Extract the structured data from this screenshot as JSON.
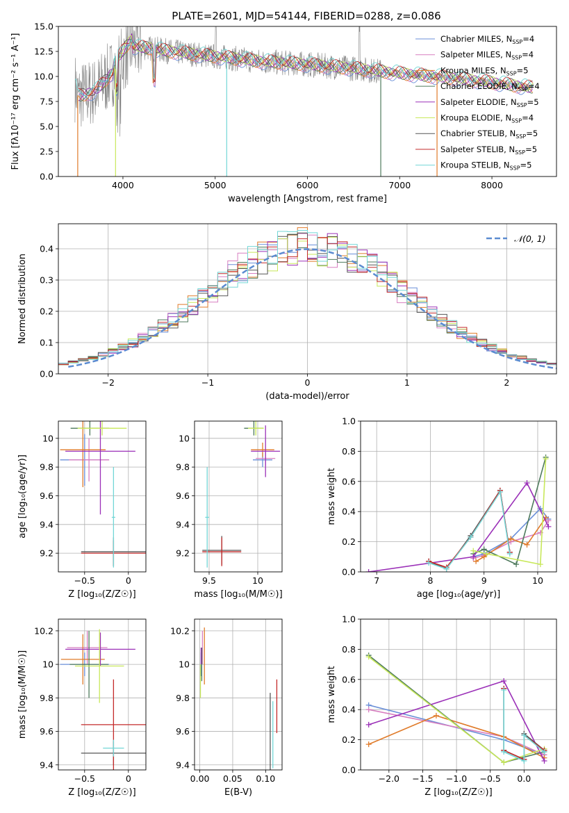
{
  "figure": {
    "title": "PLATE=2601, MJD=54144, FIBERID=0288, z=0.086",
    "colors": {
      "chabrier_miles": "#6a8fd8",
      "salpeter_miles": "#d77fc0",
      "kroupa_miles": "#e07b2a",
      "chabrier_elodie": "#4e7a5c",
      "salpeter_elodie": "#9b30b8",
      "kroupa_elodie": "#c8e85a",
      "chabrier_stelib": "#555555",
      "salpeter_stelib": "#c42a2a",
      "kroupa_stelib": "#72d6d6",
      "gaussian": "#5b8bd0"
    }
  },
  "legend": [
    {
      "key": "chabrier_miles",
      "label": "Chabrier MILES, N",
      "sub": "SSP",
      "suffix": "=4"
    },
    {
      "key": "salpeter_miles",
      "label": "Salpeter MILES, N",
      "sub": "SSP",
      "suffix": "=4"
    },
    {
      "key": "kroupa_miles",
      "label": "Kroupa MILES, N",
      "sub": "SSP",
      "suffix": "=5"
    },
    {
      "key": "chabrier_elodie",
      "label": "Chabrier ELODIE, N",
      "sub": "SSP",
      "suffix": "=4"
    },
    {
      "key": "salpeter_elodie",
      "label": "Salpeter ELODIE, N",
      "sub": "SSP",
      "suffix": "=5"
    },
    {
      "key": "kroupa_elodie",
      "label": "Kroupa ELODIE, N",
      "sub": "SSP",
      "suffix": "=4"
    },
    {
      "key": "chabrier_stelib",
      "label": "Chabrier STELIB, N",
      "sub": "SSP",
      "suffix": "=5"
    },
    {
      "key": "salpeter_stelib",
      "label": "Salpeter STELIB, N",
      "sub": "SSP",
      "suffix": "=5"
    },
    {
      "key": "kroupa_stelib",
      "label": "Kroupa STELIB, N",
      "sub": "SSP",
      "suffix": "=5"
    }
  ],
  "chart_data": [
    {
      "id": "spectrum",
      "type": "line",
      "xlabel": "wavelength [Angstrom, rest frame]",
      "ylabel": "Flux [fλ10⁻¹⁷ erg cm⁻² s⁻¹ A⁻¹]",
      "xlim": [
        3300,
        8700
      ],
      "ylim": [
        0,
        15
      ],
      "xticks": [
        4000,
        5000,
        6000,
        7000,
        8000
      ],
      "yticks": [
        0.0,
        2.5,
        5.0,
        7.5,
        10.0,
        12.5,
        15.0
      ],
      "grid": false,
      "legend_position": "top-right",
      "data_envelope": {
        "wavelength": [
          3500,
          3700,
          3900,
          4100,
          4300,
          4500,
          5000,
          5500,
          6000,
          6500,
          7000,
          7500,
          8000,
          8400
        ],
        "flux": [
          8.0,
          8.5,
          10.5,
          13.0,
          12.8,
          12.5,
          12.0,
          11.5,
          11.2,
          10.8,
          10.3,
          9.9,
          9.4,
          8.9
        ]
      }
    },
    {
      "id": "residuals",
      "type": "histogram",
      "xlabel": "(data-model)/error",
      "ylabel": "Normed distribution",
      "xlim": [
        -2.5,
        2.5
      ],
      "ylim": [
        0,
        0.48
      ],
      "xticks": [
        -2,
        -1,
        0,
        1,
        2
      ],
      "yticks": [
        0.0,
        0.1,
        0.2,
        0.3,
        0.4
      ],
      "grid": true,
      "legend_position": "top-right",
      "overlay_label": "𝒩(0, 1)",
      "bin_width": 0.1
    },
    {
      "id": "age_vs_z",
      "type": "scatter",
      "xlabel": "Z [log₁₀(Z/Z☉)]",
      "ylabel": "age  [log₁₀(age/yr)]",
      "xlim": [
        -0.8,
        0.2
      ],
      "ylim": [
        9.07,
        10.12
      ],
      "xticks": [
        -0.5,
        0.0
      ],
      "yticks": [
        9.2,
        9.4,
        9.6,
        9.8,
        10.0
      ],
      "grid": true,
      "points": [
        {
          "key": "chabrier_miles",
          "x": -0.5,
          "y": 9.85,
          "xerr": 0.28,
          "yerr": 0.18
        },
        {
          "key": "salpeter_miles",
          "x": -0.45,
          "y": 9.85,
          "xerr": 0.23,
          "yerr": 0.15
        },
        {
          "key": "kroupa_miles",
          "x": -0.52,
          "y": 9.92,
          "xerr": 0.26,
          "yerr": 0.26
        },
        {
          "key": "chabrier_elodie",
          "x": -0.44,
          "y": 10.07,
          "xerr": 0.22,
          "yerr": 0.05
        },
        {
          "key": "salpeter_elodie",
          "x": -0.32,
          "y": 9.91,
          "xerr": 0.4,
          "yerr": 0.44
        },
        {
          "key": "kroupa_elodie",
          "x": -0.3,
          "y": 10.07,
          "xerr": 0.28,
          "yerr": 0.05
        },
        {
          "key": "chabrier_stelib",
          "x": -0.17,
          "y": 9.21,
          "xerr": 0.37,
          "yerr": 0.1
        },
        {
          "key": "salpeter_stelib",
          "x": -0.17,
          "y": 9.2,
          "xerr": 0.37,
          "yerr": 0.09
        },
        {
          "key": "kroupa_stelib",
          "x": -0.17,
          "y": 9.45,
          "xerr": 0.02,
          "yerr": 0.35
        }
      ]
    },
    {
      "id": "age_vs_mass",
      "type": "scatter",
      "xlabel": "mass [log₁₀(M/M☉)]",
      "ylabel": "",
      "xlim": [
        9.35,
        10.25
      ],
      "ylim": [
        9.07,
        10.12
      ],
      "xticks": [
        9.5,
        10.0
      ],
      "yticks": [
        9.2,
        9.4,
        9.6,
        9.8,
        10.0
      ],
      "grid": true,
      "points": [
        {
          "key": "chabrier_miles",
          "x": 10.05,
          "y": 9.85,
          "xerr": 0.1,
          "yerr": 0.05
        },
        {
          "key": "salpeter_miles",
          "x": 10.08,
          "y": 9.86,
          "xerr": 0.1,
          "yerr": 0.05
        },
        {
          "key": "kroupa_miles",
          "x": 10.05,
          "y": 9.92,
          "xerr": 0.12,
          "yerr": 0.05
        },
        {
          "key": "chabrier_elodie",
          "x": 9.96,
          "y": 10.07,
          "xerr": 0.1,
          "yerr": 0.05
        },
        {
          "key": "salpeter_elodie",
          "x": 10.08,
          "y": 9.91,
          "xerr": 0.15,
          "yerr": 0.18
        },
        {
          "key": "kroupa_elodie",
          "x": 9.98,
          "y": 10.07,
          "xerr": 0.08,
          "yerr": 0.05
        },
        {
          "key": "chabrier_stelib",
          "x": 9.63,
          "y": 9.22,
          "xerr": 0.2,
          "yerr": 0.1
        },
        {
          "key": "salpeter_stelib",
          "x": 9.63,
          "y": 9.21,
          "xerr": 0.2,
          "yerr": 0.1
        },
        {
          "key": "kroupa_stelib",
          "x": 9.48,
          "y": 9.45,
          "xerr": 0.02,
          "yerr": 0.35
        }
      ]
    },
    {
      "id": "weight_vs_age",
      "type": "line",
      "xlabel": "age  [log₁₀(age/yr)]",
      "ylabel": "mass weight",
      "xlim": [
        6.7,
        10.35
      ],
      "ylim": [
        0,
        1.0
      ],
      "xticks": [
        7,
        8,
        9,
        10
      ],
      "yticks": [
        0.0,
        0.2,
        0.4,
        0.6,
        0.8,
        1.0
      ],
      "grid": true,
      "series": [
        {
          "key": "chabrier_miles",
          "x": [
            8.8,
            9.0,
            9.5,
            10.05,
            10.2
          ],
          "y": [
            0.1,
            0.12,
            0.22,
            0.42,
            0.35
          ]
        },
        {
          "key": "salpeter_miles",
          "x": [
            8.8,
            9.0,
            9.5,
            10.05,
            10.2
          ],
          "y": [
            0.09,
            0.11,
            0.2,
            0.26,
            0.34
          ]
        },
        {
          "key": "kroupa_miles",
          "x": [
            8.85,
            9.0,
            9.5,
            9.8,
            10.15
          ],
          "y": [
            0.07,
            0.1,
            0.22,
            0.18,
            0.36
          ]
        },
        {
          "key": "chabrier_elodie",
          "x": [
            8.8,
            9.0,
            9.6,
            10.15
          ],
          "y": [
            0.12,
            0.15,
            0.05,
            0.76
          ]
        },
        {
          "key": "salpeter_elodie",
          "x": [
            6.85,
            8.8,
            9.8,
            10.2
          ],
          "y": [
            0.0,
            0.1,
            0.59,
            0.3
          ]
        },
        {
          "key": "kroupa_elodie",
          "x": [
            8.8,
            9.05,
            10.05,
            10.15
          ],
          "y": [
            0.14,
            0.12,
            0.05,
            0.75
          ]
        },
        {
          "key": "chabrier_stelib",
          "x": [
            7.97,
            8.3,
            8.75,
            9.3,
            9.48
          ],
          "y": [
            0.07,
            0.02,
            0.24,
            0.54,
            0.13
          ]
        },
        {
          "key": "salpeter_stelib",
          "x": [
            7.97,
            8.3,
            8.75,
            9.3,
            9.48
          ],
          "y": [
            0.07,
            0.03,
            0.23,
            0.54,
            0.13
          ]
        },
        {
          "key": "kroupa_stelib",
          "x": [
            7.97,
            8.3,
            8.75,
            9.3,
            9.48
          ],
          "y": [
            0.06,
            0.02,
            0.23,
            0.53,
            0.12
          ]
        }
      ]
    },
    {
      "id": "mass_vs_z",
      "type": "scatter",
      "xlabel": "Z [log₁₀(Z/Z☉)]",
      "ylabel": "mass [log₁₀(M/M☉)]",
      "xlim": [
        -0.8,
        0.2
      ],
      "ylim": [
        9.37,
        10.27
      ],
      "xticks": [
        -0.5,
        0.0
      ],
      "yticks": [
        9.4,
        9.6,
        9.8,
        10.0,
        10.2
      ],
      "grid": true,
      "points": [
        {
          "key": "chabrier_miles",
          "x": -0.5,
          "y": 10.0,
          "xerr": 0.28,
          "yerr": 0.07
        },
        {
          "key": "salpeter_miles",
          "x": -0.47,
          "y": 10.1,
          "xerr": 0.23,
          "yerr": 0.1
        },
        {
          "key": "kroupa_miles",
          "x": -0.52,
          "y": 10.03,
          "xerr": 0.25,
          "yerr": 0.15
        },
        {
          "key": "chabrier_elodie",
          "x": -0.45,
          "y": 10.0,
          "xerr": 0.22,
          "yerr": 0.2
        },
        {
          "key": "salpeter_elodie",
          "x": -0.32,
          "y": 10.09,
          "xerr": 0.4,
          "yerr": 0.1
        },
        {
          "key": "kroupa_elodie",
          "x": -0.33,
          "y": 9.99,
          "xerr": 0.28,
          "yerr": 0.22
        },
        {
          "key": "chabrier_stelib",
          "x": -0.17,
          "y": 9.47,
          "xerr": 0.37,
          "yerr": 0.07
        },
        {
          "key": "salpeter_stelib",
          "x": -0.17,
          "y": 9.64,
          "xerr": 0.37,
          "yerr": 0.27
        },
        {
          "key": "kroupa_stelib",
          "x": -0.17,
          "y": 9.5,
          "xerr": 0.12,
          "yerr": 0.05
        }
      ]
    },
    {
      "id": "mass_vs_ebv",
      "type": "scatter",
      "xlabel": "E(B-V)",
      "ylabel": "",
      "xlim": [
        -0.008,
        0.125
      ],
      "ylim": [
        9.37,
        10.27
      ],
      "xticks": [
        0.0,
        0.05,
        0.1
      ],
      "xticklabels": [
        "0.00",
        "0.05",
        "0.10"
      ],
      "yticks": [
        9.4,
        9.6,
        9.8,
        10.0,
        10.2
      ],
      "grid": true,
      "points": [
        {
          "key": "chabrier_miles",
          "x": 0.002,
          "y": 10.0,
          "xerr": 0.0,
          "yerr": 0.07
        },
        {
          "key": "salpeter_miles",
          "x": 0.004,
          "y": 10.1,
          "xerr": 0.0,
          "yerr": 0.1
        },
        {
          "key": "kroupa_miles",
          "x": 0.007,
          "y": 10.05,
          "xerr": 0.0,
          "yerr": 0.17
        },
        {
          "key": "chabrier_elodie",
          "x": 0.003,
          "y": 10.0,
          "xerr": 0.0,
          "yerr": 0.1
        },
        {
          "key": "salpeter_elodie",
          "x": 0.002,
          "y": 10.05,
          "xerr": 0.0,
          "yerr": 0.05
        },
        {
          "key": "kroupa_elodie",
          "x": 0.001,
          "y": 9.9,
          "xerr": 0.0,
          "yerr": 0.1
        },
        {
          "key": "chabrier_stelib",
          "x": 0.107,
          "y": 9.6,
          "xerr": 0.0,
          "yerr": 0.23
        },
        {
          "key": "salpeter_stelib",
          "x": 0.117,
          "y": 9.75,
          "xerr": 0.0,
          "yerr": 0.16
        },
        {
          "key": "kroupa_stelib",
          "x": 0.111,
          "y": 9.58,
          "xerr": 0.0,
          "yerr": 0.2
        }
      ]
    },
    {
      "id": "weight_vs_z",
      "type": "line",
      "xlabel": "Z [log₁₀(Z/Z☉)]",
      "ylabel": "mass weight",
      "xlim": [
        -2.42,
        0.48
      ],
      "ylim": [
        0,
        1.0
      ],
      "xticks": [
        -2.0,
        -1.5,
        -1.0,
        -0.5,
        0.0
      ],
      "yticks": [
        0.0,
        0.2,
        0.4,
        0.6,
        0.8,
        1.0
      ],
      "grid": true,
      "series": [
        {
          "key": "chabrier_miles",
          "x": [
            -2.3,
            -0.3,
            0.3
          ],
          "y": [
            0.43,
            0.2,
            0.1
          ]
        },
        {
          "key": "salpeter_miles",
          "x": [
            -2.3,
            -0.3,
            0.3
          ],
          "y": [
            0.4,
            0.22,
            0.1
          ]
        },
        {
          "key": "kroupa_miles",
          "x": [
            -2.3,
            -1.3,
            -0.3,
            0.3
          ],
          "y": [
            0.17,
            0.36,
            0.22,
            0.08
          ]
        },
        {
          "key": "chabrier_elodie",
          "x": [
            -2.3,
            -0.3,
            0.3
          ],
          "y": [
            0.76,
            0.05,
            0.12
          ]
        },
        {
          "key": "salpeter_elodie",
          "x": [
            -2.3,
            -0.3,
            0.3
          ],
          "y": [
            0.3,
            0.59,
            0.06
          ]
        },
        {
          "key": "kroupa_elodie",
          "x": [
            -2.3,
            -0.3,
            0.3
          ],
          "y": [
            0.75,
            0.05,
            0.14
          ]
        },
        {
          "key": "chabrier_stelib",
          "x": [
            -0.3,
            -0.3,
            0.0,
            0.0,
            0.3
          ],
          "y": [
            0.54,
            0.13,
            0.07,
            0.24,
            0.13
          ]
        },
        {
          "key": "salpeter_stelib",
          "x": [
            -0.3,
            -0.3,
            0.0,
            0.0,
            0.3
          ],
          "y": [
            0.54,
            0.13,
            0.07,
            0.23,
            0.13
          ]
        },
        {
          "key": "kroupa_stelib",
          "x": [
            -0.3,
            -0.3,
            0.0,
            0.0,
            0.3
          ],
          "y": [
            0.53,
            0.12,
            0.06,
            0.23,
            0.12
          ]
        }
      ]
    }
  ]
}
